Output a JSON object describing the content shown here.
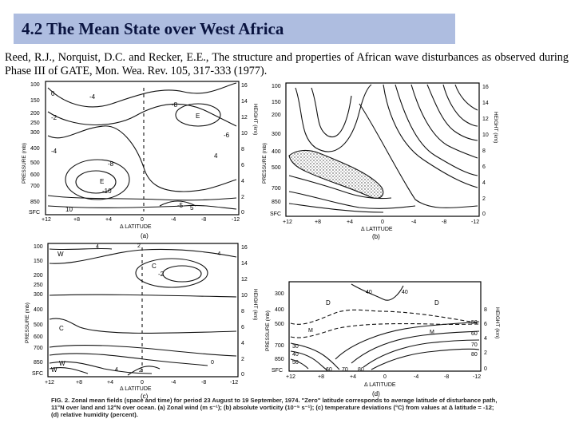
{
  "title": "4.2 The Mean State over West Africa",
  "citation": "Reed, R.J., Norquist, D.C. and Recker, E.E., The structure and properties of African wave disturbances as observed during Phase III of GATE, Mon. Wea. Rev. 105, 317-333 (1977).",
  "axes": {
    "pressure_label": "PRESSURE (mb)",
    "height_label": "HEIGHT (km)",
    "latitude_label": "Δ LATITUDE",
    "pressure_ticks": [
      "100",
      "150",
      "200",
      "250",
      "300",
      "400",
      "500",
      "600",
      "700",
      "850",
      "SFC"
    ],
    "pressure_ticks_b": [
      "100",
      "150",
      "200",
      "300",
      "400",
      "500",
      "700",
      "850",
      "SFC"
    ],
    "height_ticks": [
      "16",
      "14",
      "12",
      "10",
      "8",
      "6",
      "4",
      "2",
      "0"
    ],
    "lat_ticks": [
      "+12",
      "+8",
      "+4",
      "0",
      "-4",
      "-8",
      "-12"
    ]
  },
  "panels": {
    "a": {
      "label": "(a)",
      "contour_labels": [
        "-4",
        "E",
        "-8",
        "E",
        "-10",
        "0",
        "-2",
        "-4",
        "-5",
        "5",
        "10",
        "4",
        "-6",
        "-8"
      ]
    },
    "b": {
      "label": "(b)"
    },
    "c": {
      "label": "(c)",
      "contour_labels": [
        "W",
        "C",
        "-2",
        "C",
        "W",
        "W",
        "2",
        "4",
        "-4",
        "4",
        "2",
        "0"
      ]
    },
    "d": {
      "label": "(d)",
      "contour_labels": [
        "D",
        "40",
        "40",
        "M",
        "D",
        "M",
        "30",
        "40",
        "50",
        "60",
        "70",
        "80",
        "50",
        "60",
        "70",
        "80"
      ]
    }
  },
  "caption": "FIG. 2. Zonal mean fields (space and time) for period 23 August to 19 September, 1974. \"Zero\" latitude corresponds to average latitude of disturbance path, 11°N over land and 12°N over ocean. (a) Zonal wind (m s⁻¹); (b) absolute vorticity (10⁻⁵ s⁻¹); (c) temperature deviations (°C) from values at Δ latitude = -12; (d) relative humidity (percent)."
}
